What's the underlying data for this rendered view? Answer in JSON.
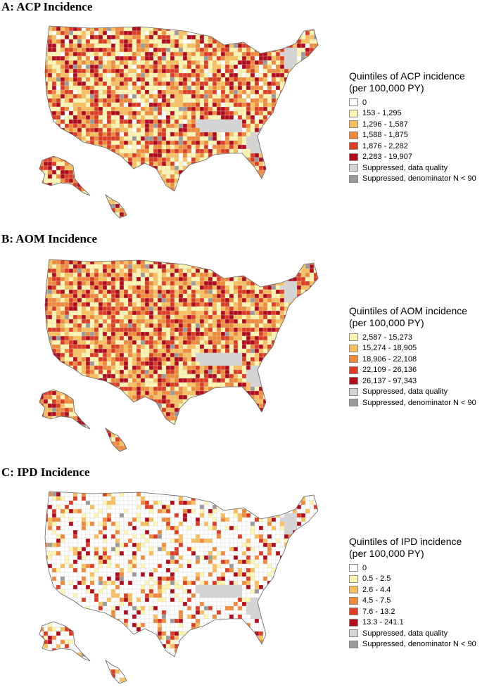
{
  "colors": {
    "white": "#ffffff",
    "q1": "#fdf5b0",
    "q2": "#f9bf5c",
    "q3": "#f08a3a",
    "q4": "#dd3c22",
    "q5": "#b10a1c",
    "suppressed_quality": "#d4d4d4",
    "suppressed_denominator": "#9a9a9a",
    "border": "#8a8a8a"
  },
  "panels": [
    {
      "id": "acp",
      "title": "A: ACP Incidence",
      "legend_title": [
        "Quintiles of ACP incidence",
        "(per 100,000 PY)"
      ],
      "legend": [
        {
          "label": "0",
          "color": "#ffffff"
        },
        {
          "label": "153 - 1,295",
          "color": "#fdf5b0"
        },
        {
          "label": "1,296 - 1,587",
          "color": "#f9bf5c"
        },
        {
          "label": "1,588 - 1,875",
          "color": "#f08a3a"
        },
        {
          "label": "1,876 - 2,282",
          "color": "#dd3c22"
        },
        {
          "label": "2,283 - 19,907",
          "color": "#b10a1c"
        },
        {
          "label": "Suppressed, data quality",
          "color": "#d4d4d4"
        },
        {
          "label": "Suppressed, denominator N < 90",
          "color": "#9a9a9a"
        }
      ],
      "palette_weights": [
        0.05,
        0.24,
        0.2,
        0.2,
        0.18,
        0.13
      ]
    },
    {
      "id": "aom",
      "title": "B: AOM Incidence",
      "legend_title": [
        "Quintiles of AOM incidence",
        "(per 100,000 PY)"
      ],
      "legend": [
        {
          "label": "2,587 - 15,273",
          "color": "#fdf5b0"
        },
        {
          "label": "15,274 - 18,905",
          "color": "#f9bf5c"
        },
        {
          "label": "18,906 - 22,108",
          "color": "#f08a3a"
        },
        {
          "label": "22,109 - 26,136",
          "color": "#dd3c22"
        },
        {
          "label": "26,137 - 97,343",
          "color": "#b10a1c"
        },
        {
          "label": "Suppressed, data quality",
          "color": "#d4d4d4"
        },
        {
          "label": "Suppressed, denominator N < 90",
          "color": "#9a9a9a"
        }
      ],
      "palette_weights": [
        0,
        0.22,
        0.22,
        0.2,
        0.2,
        0.16
      ]
    },
    {
      "id": "ipd",
      "title": "C: IPD Incidence",
      "legend_title": [
        "Quintiles of IPD incidence",
        "(per 100,000 PY)"
      ],
      "legend": [
        {
          "label": "0",
          "color": "#ffffff"
        },
        {
          "label": "0.5 - 2.5",
          "color": "#fdf5b0"
        },
        {
          "label": "2.6 - 4.4",
          "color": "#f9bf5c"
        },
        {
          "label": "4.5 - 7.5",
          "color": "#f08a3a"
        },
        {
          "label": "7.6 - 13.2",
          "color": "#dd3c22"
        },
        {
          "label": "13.3 - 241.1",
          "color": "#b10a1c"
        },
        {
          "label": "Suppressed, data quality",
          "color": "#d4d4d4"
        },
        {
          "label": "Suppressed, denominator N < 90",
          "color": "#9a9a9a"
        }
      ],
      "palette_weights": [
        0.68,
        0.08,
        0.07,
        0.06,
        0.06,
        0.05
      ]
    }
  ]
}
